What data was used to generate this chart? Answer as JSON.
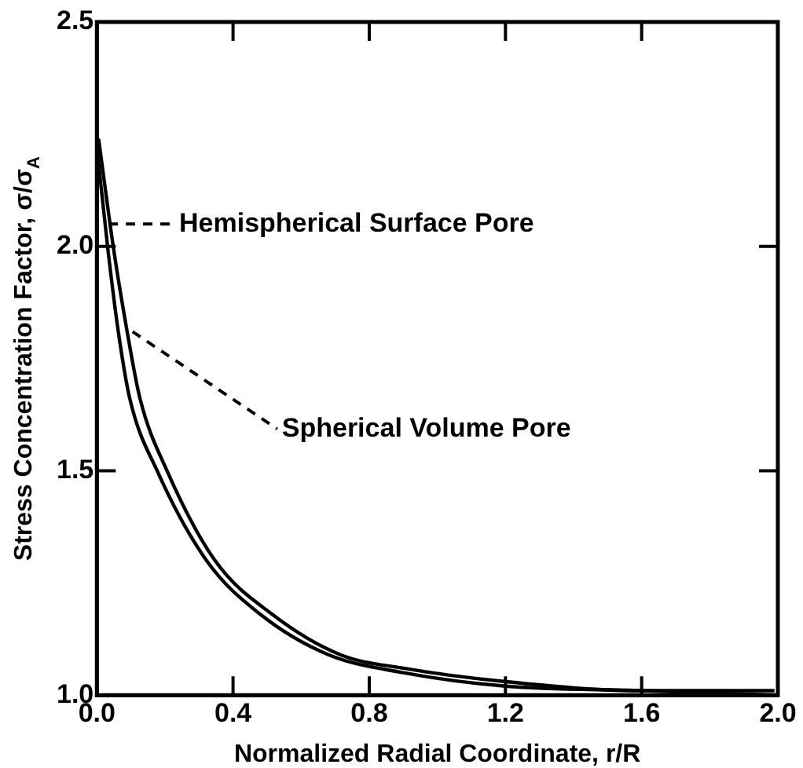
{
  "chart_data": {
    "type": "line",
    "xlabel": "Normalized Radial Coordinate, r/R",
    "ylabel": "Stress Concentration Factor, σ/σ$_{A}$",
    "xlim": [
      0,
      2
    ],
    "ylim": [
      1,
      2.5
    ],
    "xticks": [
      {
        "value": 0,
        "label": "0.0"
      },
      0.4,
      0.8,
      1.2,
      1.6,
      {
        "value": 2,
        "label": "2.0"
      }
    ],
    "yticks": [
      {
        "value": 1,
        "label": "1.0"
      },
      1.5,
      {
        "value": 2,
        "label": "2.0"
      },
      2.5
    ],
    "grid": false,
    "legend": false,
    "marker": "none",
    "line_style": "solid",
    "series": [
      {
        "color": "#000000",
        "x": [
          0,
          0.033,
          0.063,
          0.097,
          0.177,
          0.322,
          0.48,
          0.68,
          0.9,
          1.2,
          1.6,
          2.0
        ],
        "values": [
          2.22,
          1.99,
          1.81,
          1.66,
          1.5,
          1.3,
          1.18,
          1.09,
          1.05,
          1.02,
          1.01,
          1.0
        ]
      },
      {
        "color": "#000000",
        "x": [
          0.005,
          0.05,
          0.089,
          0.127,
          0.206,
          0.347,
          0.515,
          0.715,
          0.9,
          1.2,
          1.6,
          1.99
        ],
        "values": [
          2.24,
          1.99,
          1.81,
          1.66,
          1.5,
          1.3,
          1.18,
          1.09,
          1.06,
          1.03,
          1.01,
          1.01
        ]
      }
    ],
    "annotations": [
      {
        "text": "Hemispherical Surface Pore",
        "x": 0.034,
        "y": 2.05
      },
      {
        "text": "Spherical Volume Pore",
        "x": 0.105,
        "y": 1.81
      }
    ]
  }
}
